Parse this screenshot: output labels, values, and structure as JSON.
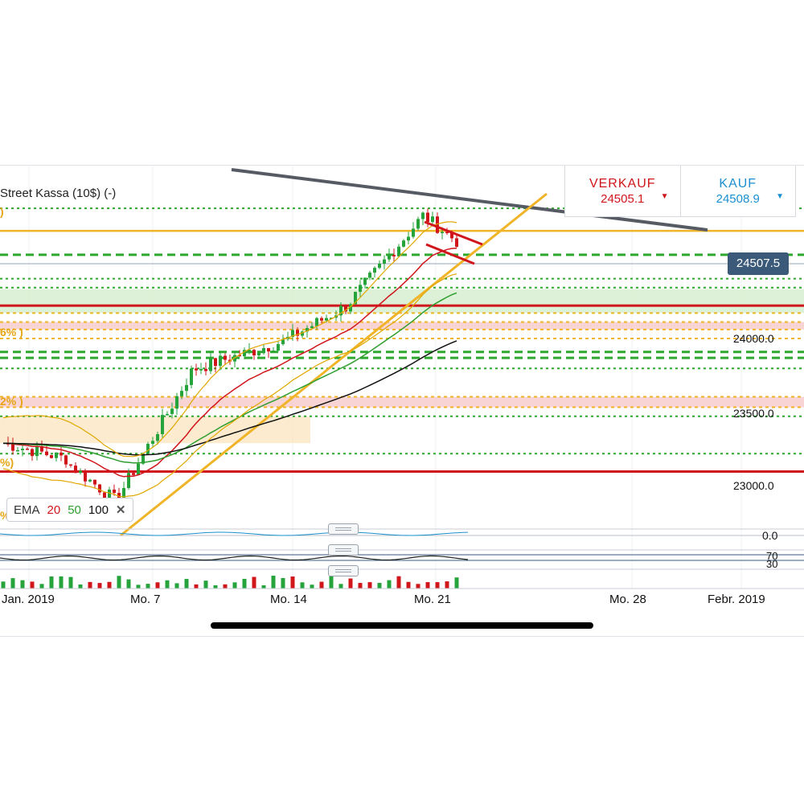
{
  "instrument": {
    "title": "Street Kassa (10$) (-)"
  },
  "trade": {
    "sell_label": "VERKAUF",
    "sell_price": "24505.1",
    "buy_label": "KAUF",
    "buy_price": "24508.9",
    "arrow": "▼"
  },
  "current_price_tag": "24507.5",
  "y_axis": {
    "labels": [
      "24000.0",
      "23500.0",
      "23000.0"
    ],
    "price_range": [
      22650,
      25000
    ]
  },
  "indicator_axis": {
    "macd_zero": "0.0",
    "rsi_upper": "70",
    "rsi_lower": "30"
  },
  "x_axis": {
    "labels": [
      "Jan. 2019",
      "Mo. 7",
      "Mo. 14",
      "Mo. 21",
      "Mo. 28",
      "Febr. 2019"
    ]
  },
  "ema_legend": {
    "label": "EMA",
    "p1": "20",
    "p2": "50",
    "p3": "100",
    "close": "✕"
  },
  "fib_fragments": [
    ")",
    "6% )",
    "2% )",
    "%)",
    "%"
  ],
  "colors": {
    "ema20": "#d0151b",
    "ema50": "#2e9e2e",
    "ema100": "#111111",
    "bollinger": "#e0a800",
    "trendline": "#f0b429",
    "resistance": "#555a63",
    "bull": "#26a33a",
    "bear": "#d0151b",
    "sell": "#d0151b",
    "buy": "#1b8fcf"
  },
  "chart_data": {
    "type": "candlestick",
    "series": [
      {
        "name": "EMA 20"
      },
      {
        "name": "EMA 50"
      },
      {
        "name": "EMA 100"
      }
    ],
    "horizontal_levels": [
      24870,
      24720,
      24560,
      24400,
      24340,
      24220,
      24170,
      24110,
      24060,
      24000,
      23910,
      23870,
      23800,
      23610,
      23540,
      23480,
      23230,
      23110
    ],
    "last_price": 24507.5
  }
}
